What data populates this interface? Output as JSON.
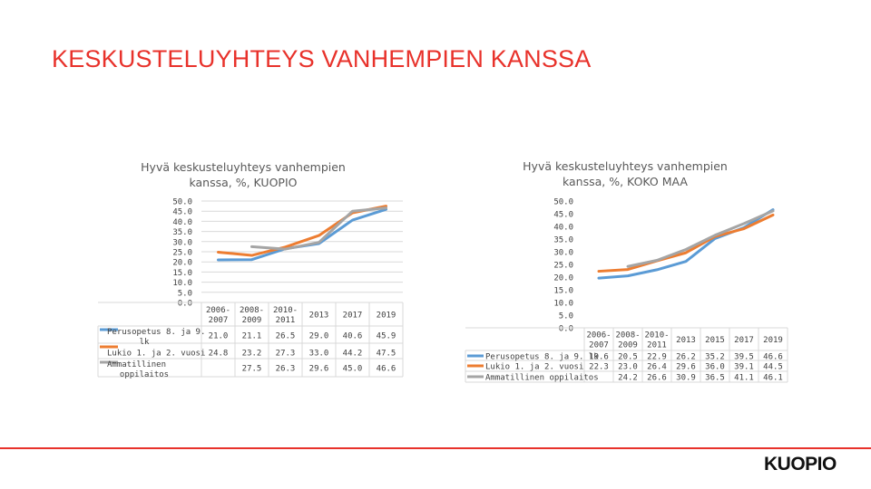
{
  "slide": {
    "title": "KESKUSTELUYHTEYS VANHEMPIEN KANSSA"
  },
  "logo": "KUOPIO",
  "chart_data": [
    {
      "type": "line",
      "title": "Hyvä keskusteluyhteys vanhempien kanssa, %, KUOPIO",
      "title_lines": [
        "Hyvä keskusteluyhteys vanhempien",
        "kanssa, %, KUOPIO"
      ],
      "categories": [
        [
          "2006-",
          "2007"
        ],
        [
          "2008-",
          "2009"
        ],
        [
          "2010-",
          "2011"
        ],
        [
          "2013"
        ],
        [
          "2017"
        ],
        [
          "2019"
        ]
      ],
      "ylim": [
        0,
        50
      ],
      "yticks": [
        "50.0",
        "45.0",
        "40.0",
        "35.0",
        "30.0",
        "25.0",
        "20.0",
        "15.0",
        "10.0",
        "5.0",
        "0.0"
      ],
      "grid": true,
      "series": [
        {
          "name": "Perusopetus 8. ja 9. lk",
          "name_lines": [
            "Perusopetus 8. ja 9.",
            "lk"
          ],
          "color": "#5b9bd5",
          "values": [
            21.0,
            21.1,
            26.5,
            29.0,
            40.6,
            45.9
          ],
          "labels": [
            "21.0",
            "21.1",
            "26.5",
            "29.0",
            "40.6",
            "45.9"
          ]
        },
        {
          "name": "Lukio 1. ja 2. vuosi",
          "name_lines": [
            "Lukio 1. ja 2. vuosi"
          ],
          "color": "#ed7d31",
          "values": [
            24.8,
            23.2,
            27.3,
            33.0,
            44.2,
            47.5
          ],
          "labels": [
            "24.8",
            "23.2",
            "27.3",
            "33.0",
            "44.2",
            "47.5"
          ]
        },
        {
          "name": "Ammatillinen oppilaitos",
          "name_lines": [
            "Ammatillinen",
            "oppilaitos"
          ],
          "color": "#a5a5a5",
          "values": [
            null,
            27.5,
            26.3,
            29.6,
            45.0,
            46.6
          ],
          "labels": [
            "",
            "27.5",
            "26.3",
            "29.6",
            "45.0",
            "46.6"
          ]
        }
      ]
    },
    {
      "type": "line",
      "title": "Hyvä keskusteluyhteys vanhempien kanssa, %, KOKO MAA",
      "title_lines": [
        "Hyvä keskusteluyhteys vanhempien",
        "kanssa, %, KOKO MAA"
      ],
      "categories": [
        [
          "2006-",
          "2007"
        ],
        [
          "2008-",
          "2009"
        ],
        [
          "2010-",
          "2011"
        ],
        [
          "2013"
        ],
        [
          "2015"
        ],
        [
          "2017"
        ],
        [
          "2019"
        ]
      ],
      "ylim": [
        0,
        50
      ],
      "yticks": [
        "50.0",
        "45.0",
        "40.0",
        "35.0",
        "30.0",
        "25.0",
        "20.0",
        "15.0",
        "10.0",
        "5.0",
        "0.0"
      ],
      "grid": false,
      "series": [
        {
          "name": "Perusopetus 8. ja 9. lk",
          "name_lines": [
            "Perusopetus 8. ja 9. lk"
          ],
          "color": "#5b9bd5",
          "values": [
            19.6,
            20.5,
            22.9,
            26.2,
            35.2,
            39.5,
            46.6
          ],
          "labels": [
            "19.6",
            "20.5",
            "22.9",
            "26.2",
            "35.2",
            "39.5",
            "46.6"
          ]
        },
        {
          "name": "Lukio 1. ja 2. vuosi",
          "name_lines": [
            "Lukio 1. ja 2. vuosi"
          ],
          "color": "#ed7d31",
          "values": [
            22.3,
            23.0,
            26.4,
            29.6,
            36.0,
            39.1,
            44.5
          ],
          "labels": [
            "22.3",
            "23.0",
            "26.4",
            "29.6",
            "36.0",
            "39.1",
            "44.5"
          ]
        },
        {
          "name": "Ammatillinen oppilaitos",
          "name_lines": [
            "Ammatillinen oppilaitos"
          ],
          "color": "#a5a5a5",
          "values": [
            null,
            24.2,
            26.6,
            30.9,
            36.5,
            41.1,
            46.1
          ],
          "labels": [
            "",
            "24.2",
            "26.6",
            "30.9",
            "36.5",
            "41.1",
            "46.1"
          ]
        }
      ]
    }
  ]
}
